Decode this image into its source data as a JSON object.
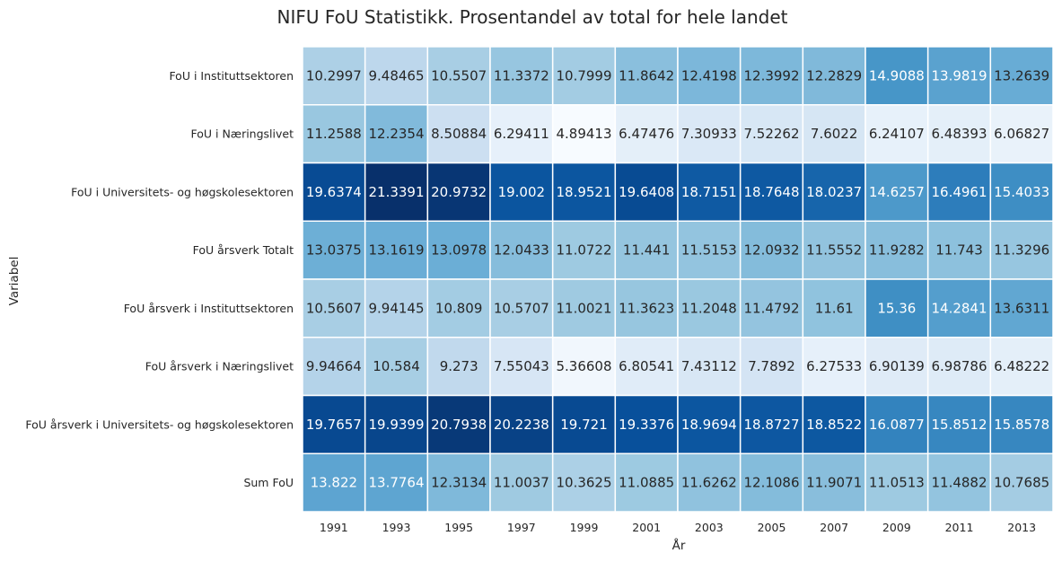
{
  "chart_data": {
    "type": "heatmap",
    "title": "NIFU FoU Statistikk. Prosentandel av total for hele landet",
    "xlabel": "År",
    "ylabel": "Variabel",
    "x_categories": [
      "1991",
      "1993",
      "1995",
      "1997",
      "1999",
      "2001",
      "2003",
      "2005",
      "2007",
      "2009",
      "2011",
      "2013"
    ],
    "y_categories": [
      "FoU i Instituttsektoren",
      "FoU i Næringslivet",
      "FoU i Universitets- og høgskolesektoren",
      "FoU årsverk Totalt",
      "FoU årsverk i Instituttsektoren",
      "FoU årsverk i Næringslivet",
      "FoU årsverk i Universitets- og høgskolesektoren",
      "Sum FoU"
    ],
    "values": [
      [
        "10.2997",
        "9.48465",
        "10.5507",
        "11.3372",
        "10.7999",
        "11.8642",
        "12.4198",
        "12.3992",
        "12.2829",
        "14.9088",
        "13.9819",
        "13.2639"
      ],
      [
        "11.2588",
        "12.2354",
        "8.50884",
        "6.29411",
        "4.89413",
        "6.47476",
        "7.30933",
        "7.52262",
        "7.6022",
        "6.24107",
        "6.48393",
        "6.06827"
      ],
      [
        "19.6374",
        "21.3391",
        "20.9732",
        "19.002",
        "18.9521",
        "19.6408",
        "18.7151",
        "18.7648",
        "18.0237",
        "14.6257",
        "16.4961",
        "15.4033"
      ],
      [
        "13.0375",
        "13.1619",
        "13.0978",
        "12.0433",
        "11.0722",
        "11.441",
        "11.5153",
        "12.0932",
        "11.5552",
        "11.9282",
        "11.743",
        "11.3296"
      ],
      [
        "10.5607",
        "9.94145",
        "10.809",
        "10.5707",
        "11.0021",
        "11.3623",
        "11.2048",
        "11.4792",
        "11.61",
        "15.36",
        "14.2841",
        "13.6311"
      ],
      [
        "9.94664",
        "10.584",
        "9.273",
        "7.55043",
        "5.36608",
        "6.80541",
        "7.43112",
        "7.7892",
        "6.27533",
        "6.90139",
        "6.98786",
        "6.48222"
      ],
      [
        "19.7657",
        "19.9399",
        "20.7938",
        "20.2238",
        "19.721",
        "19.3376",
        "18.9694",
        "18.8727",
        "18.8522",
        "16.0877",
        "15.8512",
        "15.8578"
      ],
      [
        "13.822",
        "13.7764",
        "12.3134",
        "11.0037",
        "10.3625",
        "11.0885",
        "11.6262",
        "12.1086",
        "11.9071",
        "11.0513",
        "11.4882",
        "10.7685"
      ]
    ],
    "colormap": "Blues",
    "vmin": 4.89413,
    "vmax": 21.3391,
    "grid": false,
    "legend": "none"
  }
}
